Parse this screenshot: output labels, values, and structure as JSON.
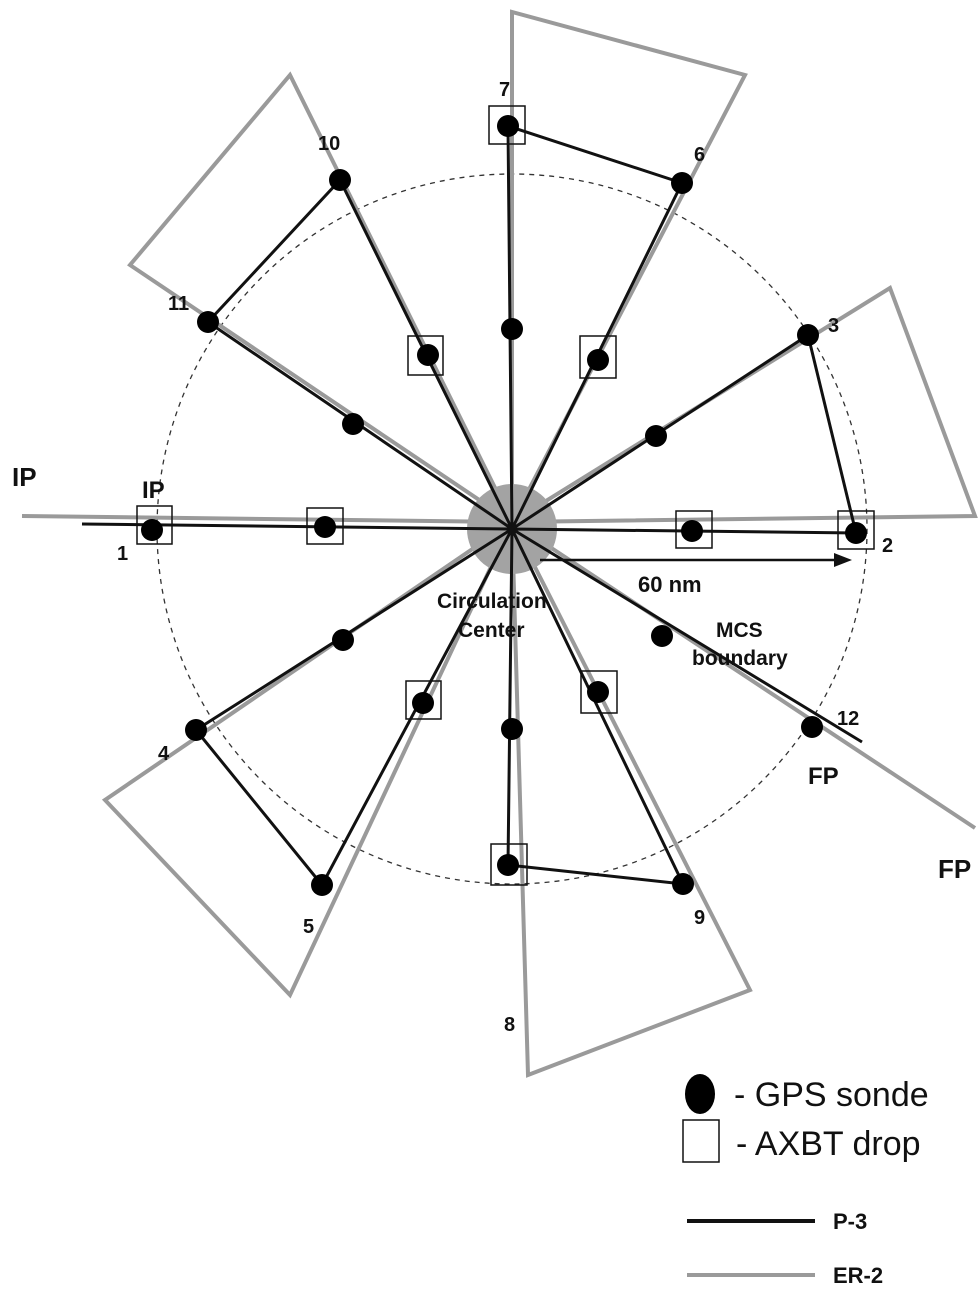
{
  "colors": {
    "p3": "#111111",
    "er2": "#9a9a9a",
    "center": "#9a9a9a",
    "boundary": "#333333",
    "sonde": "#000000"
  },
  "labels": {
    "ip_er2": "IP",
    "ip_p3": "IP",
    "fp_p3": "FP",
    "fp_er2": "FP",
    "scale": "60 nm",
    "center_line1": "Circulation",
    "center_line2": "Center",
    "boundary_line1": "MCS",
    "boundary_line2": "boundary"
  },
  "points": [
    {
      "id": "1",
      "label": "1"
    },
    {
      "id": "2",
      "label": "2"
    },
    {
      "id": "3",
      "label": "3"
    },
    {
      "id": "4",
      "label": "4"
    },
    {
      "id": "5",
      "label": "5"
    },
    {
      "id": "6",
      "label": "6"
    },
    {
      "id": "7",
      "label": "7"
    },
    {
      "id": "8",
      "label": "8"
    },
    {
      "id": "9",
      "label": "9"
    },
    {
      "id": "10",
      "label": "10"
    },
    {
      "id": "11",
      "label": "11"
    },
    {
      "id": "12",
      "label": "12"
    }
  ],
  "legend": {
    "sonde": "- GPS sonde",
    "axbt": "- AXBT drop",
    "p3": "P-3",
    "er2": "ER-2"
  }
}
